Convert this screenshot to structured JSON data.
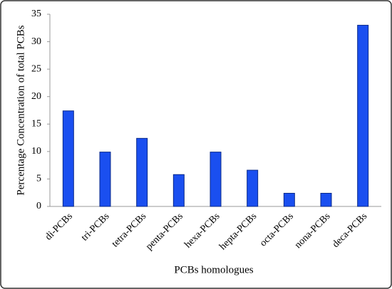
{
  "chart_data": {
    "type": "bar",
    "x_label": "PCBs homologues",
    "y_label": "Percentage  Concentration of total PCBs",
    "categories": [
      "di-PCBs",
      "tri-PCBs",
      "tetra-PCBs",
      "penta-PCBs",
      "hexa-PCBs",
      "hepta-PCBs",
      "octa-PCBs",
      "nona-PCBs",
      "deca-PCBs"
    ],
    "values": [
      17.4,
      9.9,
      12.4,
      5.8,
      9.9,
      6.6,
      2.4,
      2.4,
      33.0
    ],
    "color": "#1a4ff0",
    "ylim": [
      0,
      35
    ],
    "yticks": [
      0,
      5,
      10,
      15,
      20,
      25,
      30,
      35
    ],
    "grid": false
  }
}
